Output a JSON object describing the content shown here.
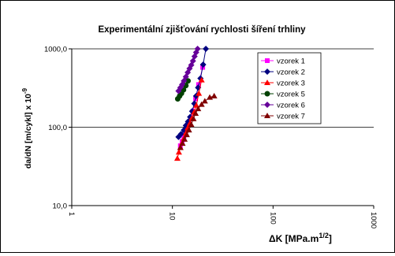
{
  "chart_data": {
    "type": "scatter",
    "title": "Experimentální zjišťování rychlosti šíření trhliny",
    "ylabel": "da/dN [m/cykl] x 10",
    "ylabel_exp": "-9",
    "xlabel": "ΔK  [MPa.m",
    "xlabel_exp": "1/2",
    "xlabel_close": "]",
    "xscale": "log",
    "yscale": "log",
    "xlim": [
      1,
      1000
    ],
    "ylim": [
      10,
      1000
    ],
    "xticks": [
      {
        "v": 1,
        "label": "1"
      },
      {
        "v": 10,
        "label": "10"
      },
      {
        "v": 100,
        "label": "100"
      },
      {
        "v": 1000,
        "label": "1000"
      }
    ],
    "yticks": [
      {
        "v": 10,
        "label": "10,0"
      },
      {
        "v": 100,
        "label": "100,0"
      },
      {
        "v": 1000,
        "label": "1000,0"
      }
    ],
    "grid": "horizontal major",
    "legend_position": "right",
    "series": [
      {
        "name": "vzorek 1",
        "color": "#ff00ff",
        "marker": "square",
        "x": [
          12.0,
          12.5,
          13.0,
          13.5,
          14.0,
          14.6,
          15.2,
          16.0,
          17.0,
          18.2,
          20.0
        ],
        "y": [
          58,
          66,
          75,
          85,
          97,
          110,
          130,
          160,
          230,
          350,
          580
        ]
      },
      {
        "name": "vzorek 2",
        "color": "#000080",
        "marker": "diamond",
        "x": [
          11.5,
          12.2,
          13.0,
          13.6,
          14.3,
          15.0,
          15.7,
          16.5,
          17.2,
          18.0,
          19.0,
          20.2,
          21.5
        ],
        "y": [
          75,
          82,
          92,
          105,
          118,
          135,
          160,
          200,
          250,
          320,
          420,
          630,
          1000
        ]
      },
      {
        "name": "vzorek 3",
        "color": "#ff0000",
        "marker": "triangle",
        "x": [
          11.2,
          11.6,
          12.0,
          12.5,
          13.0,
          13.6,
          14.2,
          14.9,
          15.6,
          16.4,
          17.3,
          18.3,
          19.5
        ],
        "y": [
          40,
          48,
          55,
          63,
          72,
          84,
          98,
          112,
          130,
          155,
          190,
          270,
          400
        ]
      },
      {
        "name": "vzorek 5",
        "color": "#004000",
        "marker": "circle",
        "x": [
          11.3,
          11.8,
          12.3,
          12.9,
          13.6,
          14.3
        ],
        "y": [
          230,
          250,
          270,
          300,
          340,
          390
        ]
      },
      {
        "name": "vzorek 6",
        "color": "#660099",
        "marker": "diamond",
        "x": [
          11.5,
          12.0,
          12.5,
          13.0,
          13.6,
          14.2,
          14.8,
          15.4,
          16.0,
          16.6,
          17.2,
          17.8
        ],
        "y": [
          290,
          320,
          350,
          390,
          440,
          500,
          560,
          620,
          700,
          800,
          900,
          1000
        ]
      },
      {
        "name": "vzorek 7",
        "color": "#800000",
        "marker": "triangle",
        "x": [
          12.0,
          12.6,
          13.2,
          13.9,
          14.6,
          15.4,
          16.2,
          17.0,
          18.0,
          19.5,
          21.0,
          23.5,
          26.0
        ],
        "y": [
          55,
          62,
          70,
          80,
          92,
          108,
          128,
          150,
          172,
          195,
          215,
          240,
          250
        ]
      }
    ]
  }
}
